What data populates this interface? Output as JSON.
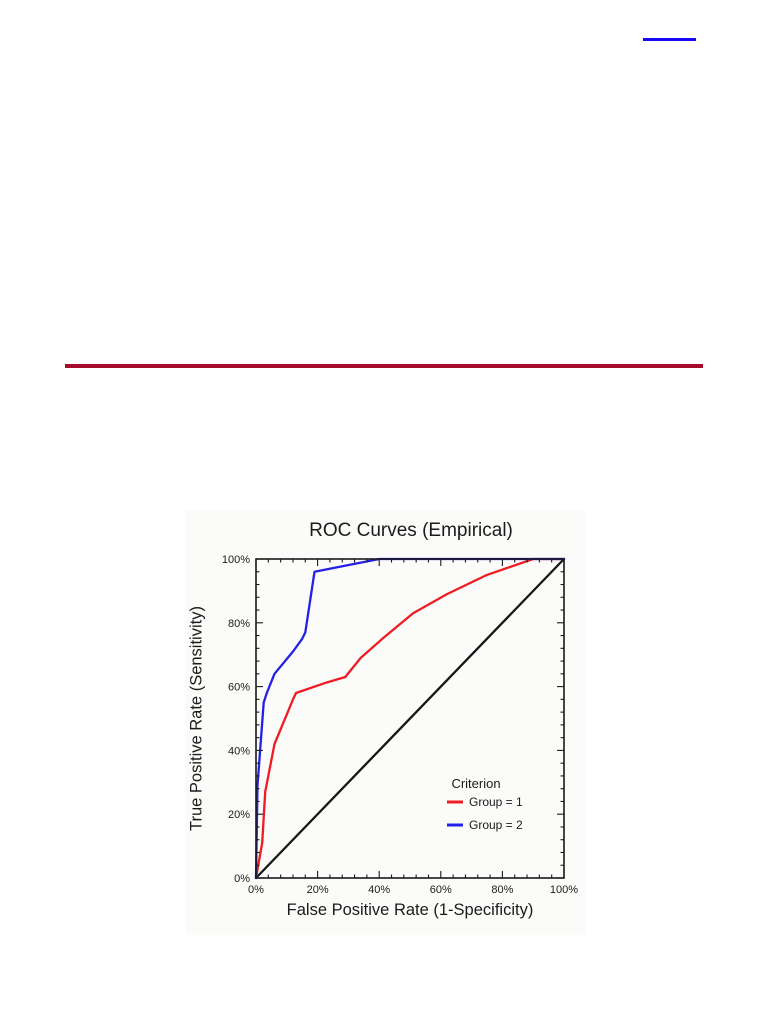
{
  "page": {
    "background_color": "#ffffff",
    "hyperlink_line": {
      "color": "#1807f2"
    },
    "divider_rule": {
      "color": "#a50c2b"
    }
  },
  "chart_data": {
    "type": "line",
    "title": "ROC Curves (Empirical)",
    "xlabel": "False Positive Rate (1-Specificity)",
    "ylabel": "True Positive Rate (Sensitivity)",
    "xlim": [
      0,
      100
    ],
    "ylim": [
      0,
      100
    ],
    "x_ticks": [
      "0%",
      "20%",
      "40%",
      "60%",
      "80%",
      "100%"
    ],
    "y_ticks": [
      "0%",
      "20%",
      "40%",
      "60%",
      "80%",
      "100%"
    ],
    "major_tick_step": 20,
    "minor_tick_step": 4,
    "grid": false,
    "axis_color": "#1a1a1a",
    "legend": {
      "title": "Criterion",
      "position": "inside lower right"
    },
    "series": [
      {
        "name": "Group = 1",
        "color": "#ee1c23",
        "in_legend": true,
        "points": [
          [
            0,
            0
          ],
          [
            2,
            11
          ],
          [
            3,
            27
          ],
          [
            6,
            42
          ],
          [
            12,
            56
          ],
          [
            13,
            58
          ],
          [
            22,
            61
          ],
          [
            29,
            63
          ],
          [
            34,
            69
          ],
          [
            41,
            75
          ],
          [
            51,
            83
          ],
          [
            62,
            89
          ],
          [
            75,
            95
          ],
          [
            90,
            100
          ],
          [
            100,
            100
          ]
        ]
      },
      {
        "name": "Group = 2",
        "color": "#2420e8",
        "in_legend": true,
        "points": [
          [
            0,
            0
          ],
          [
            0.5,
            29
          ],
          [
            2.5,
            55
          ],
          [
            3.5,
            58
          ],
          [
            6,
            64
          ],
          [
            12,
            71
          ],
          [
            15,
            75
          ],
          [
            16,
            77
          ],
          [
            19,
            96
          ],
          [
            40,
            100
          ],
          [
            100,
            100
          ]
        ]
      },
      {
        "name": "chance diagonal",
        "color": "#161616",
        "in_legend": false,
        "points": [
          [
            0,
            0
          ],
          [
            100,
            100
          ]
        ]
      }
    ]
  }
}
